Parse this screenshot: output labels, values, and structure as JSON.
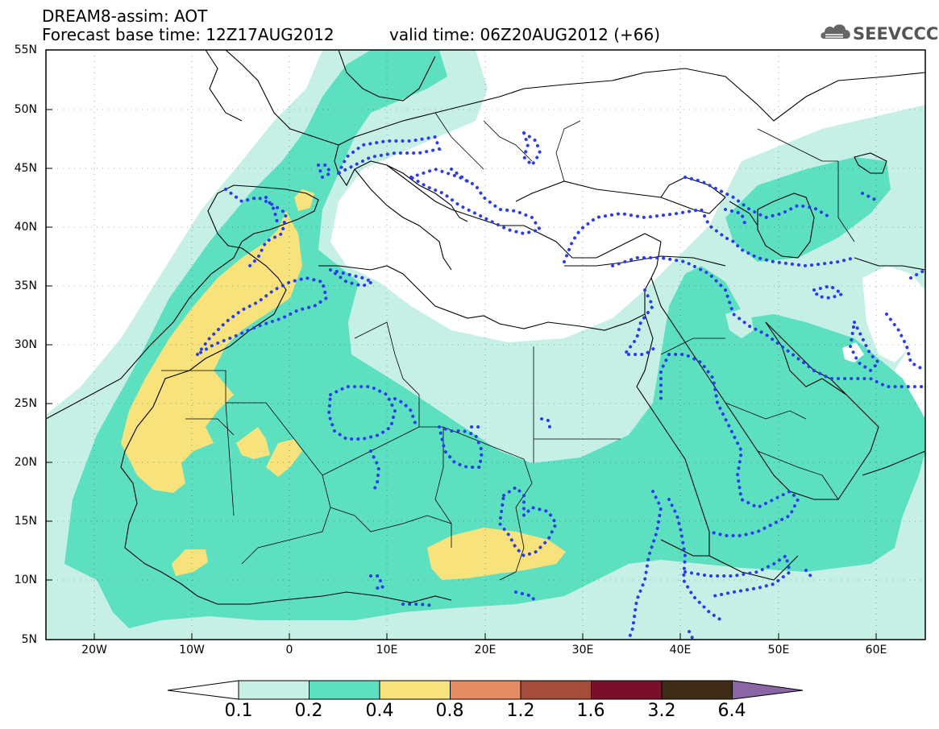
{
  "header": {
    "title_line1": "DREAM8-assim: AOT",
    "title_line2": "Forecast base time: 12Z17AUG2012",
    "valid_time": "valid time: 06Z20AUG2012 (+66)",
    "logo_text": "SEEVCCC"
  },
  "map": {
    "variable": "AOT",
    "lon_range": [
      -25,
      65
    ],
    "lat_range": [
      5,
      55
    ],
    "lat_labels": [
      "55N",
      "50N",
      "45N",
      "40N",
      "35N",
      "30N",
      "25N",
      "20N",
      "15N",
      "10N",
      "5N"
    ],
    "lon_labels": [
      "20W",
      "10W",
      "0",
      "10E",
      "20E",
      "30E",
      "40E",
      "50E",
      "60E"
    ]
  },
  "colorbar": {
    "labels": [
      "0.1",
      "0.2",
      "0.4",
      "0.8",
      "1.2",
      "1.6",
      "3.2",
      "6.4"
    ],
    "colors": [
      "#ffffff",
      "#c6f0e6",
      "#5de0bf",
      "#f7e27b",
      "#e58c62",
      "#a54c3b",
      "#7a0f2c",
      "#3f2c18",
      "#8a66a6"
    ]
  },
  "colors": {
    "level_0_1_0_2": "#c6f0e6",
    "level_0_2_0_4": "#5de0bf",
    "level_0_4_0_8": "#f7e27b",
    "dotted_contour": "#2a3cf0"
  }
}
